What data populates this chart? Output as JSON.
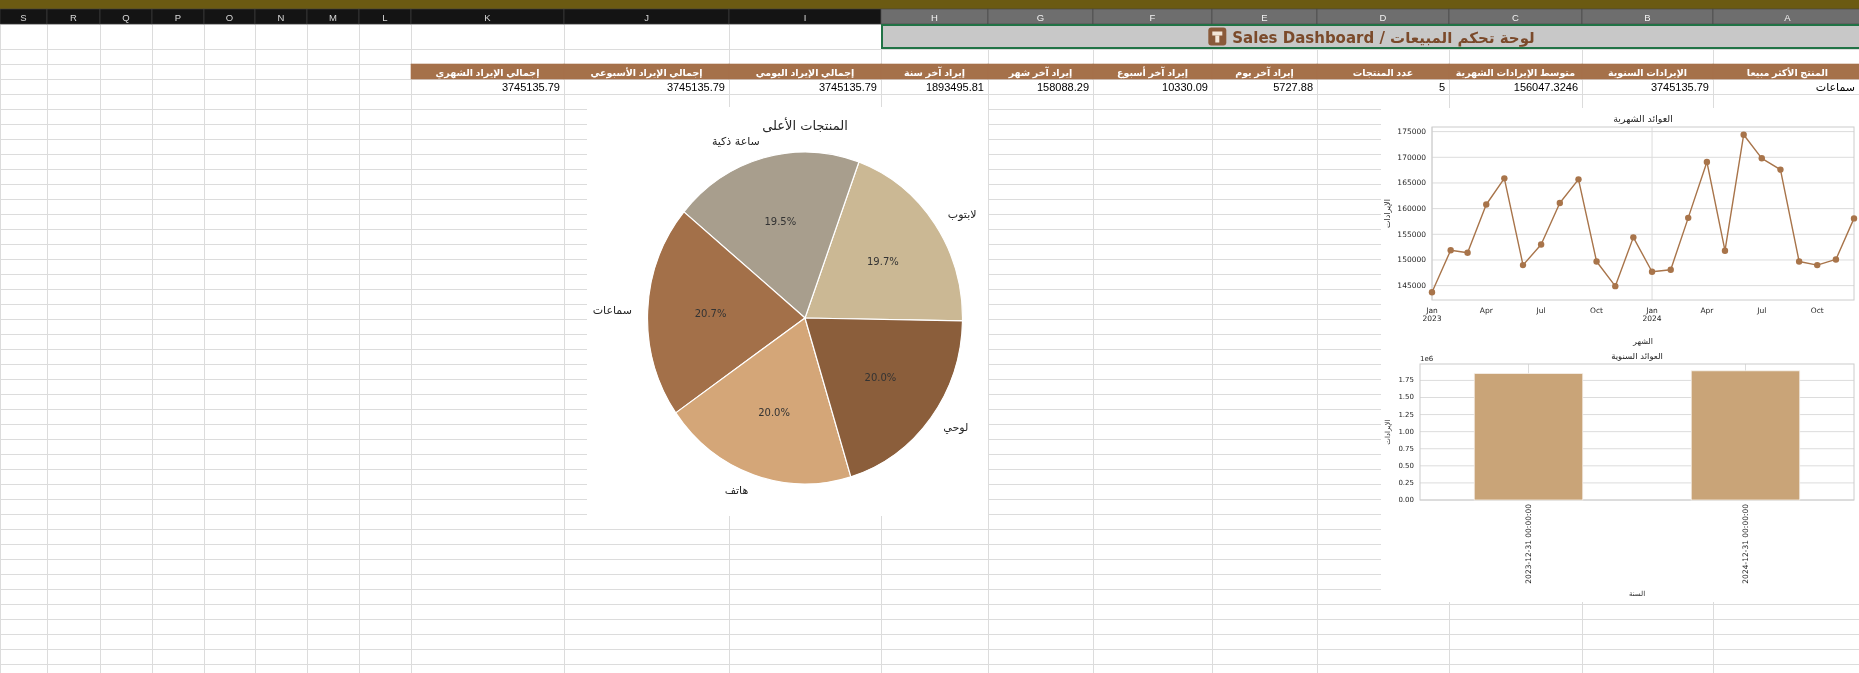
{
  "chart_data": [
    {
      "type": "other",
      "title": "لوحة تحكم المبيعات / Sales Dashboard",
      "categories": [
        "S",
        "R",
        "Q",
        "P",
        "O",
        "N",
        "M",
        "L",
        "K",
        "J",
        "I",
        "H",
        "G",
        "F",
        "E",
        "D",
        "C",
        "B",
        "A"
      ]
    },
    {
      "type": "other",
      "categories": [
        "إجمالي الإيراد الشهري",
        "إجمالي الإيراد الأسبوعي",
        "إجمالي الإيراد اليومي",
        "إيراد آخر سنة",
        "إيراد آخر شهر",
        "إيراد آخر أسبوع",
        "إيراد آخر يوم",
        "عدد المنتجات",
        "متوسط الإيرادات الشهرية",
        "الإيرادات السنوية",
        "المنتج الأكثر مبيعا"
      ],
      "value_labels": [
        "3745135.79",
        "3745135.79",
        "3745135.79",
        "1893495.81",
        "158088.29",
        "10330.09",
        "5727.88",
        "5",
        "156047.3246",
        "3745135.79",
        "سماعات"
      ]
    },
    {
      "type": "line",
      "title": "العوائد الشهرية",
      "xlabel": "الشهر",
      "ylabel": "الإيرادات",
      "x": [
        "2023-01",
        "2023-02",
        "2023-03",
        "2023-04",
        "2023-05",
        "2023-06",
        "2023-07",
        "2023-08",
        "2023-09",
        "2023-10",
        "2023-11",
        "2023-12",
        "2024-01",
        "2024-02",
        "2024-03",
        "2024-04",
        "2024-05",
        "2024-06",
        "2024-07",
        "2024-08",
        "2024-09",
        "2024-10",
        "2024-11",
        "2024-12"
      ],
      "series": [
        {
          "color": "#a8744a",
          "values": [
            143700,
            151900,
            151400,
            160800,
            165900,
            149000,
            153000,
            161100,
            165700,
            149700,
            144900,
            154400,
            147700,
            148100,
            158200,
            169100,
            151800,
            174400,
            169800,
            167600,
            149700,
            149000,
            150100,
            158100
          ]
        }
      ],
      "xlim": [
        "2023-01",
        "2024-12"
      ],
      "ylim": [
        142200,
        175900
      ],
      "xticks": [
        {
          "value": "2023-01",
          "label": "Jan\n2023"
        },
        {
          "value": "2023-04",
          "label": "Apr"
        },
        {
          "value": "2023-07",
          "label": "Jul"
        },
        {
          "value": "2023-10",
          "label": "Oct"
        },
        {
          "value": "2024-01",
          "label": "Jan\n2024"
        },
        {
          "value": "2024-04",
          "label": "Apr"
        },
        {
          "value": "2024-07",
          "label": "Jul"
        },
        {
          "value": "2024-10",
          "label": "Oct"
        }
      ],
      "yticks": [
        145000,
        150000,
        155000,
        160000,
        165000,
        170000,
        175000
      ],
      "grid": true,
      "marker": "circle"
    },
    {
      "type": "bar",
      "title": "العوائد السنوية",
      "xlabel": "السنة",
      "ylabel": "الإيرادات",
      "categories": [
        "2023-12-31 00:00:00",
        "2024-12-31 00:00:00"
      ],
      "values": [
        1.85,
        1.89
      ],
      "color": "#c9a478",
      "ylim": [
        0,
        1.99
      ],
      "yticks": [
        {
          "value": 0,
          "label": "0.00"
        },
        0.25,
        {
          "value": 0.5,
          "label": "0.50"
        },
        0.75,
        {
          "value": 1,
          "label": "1.00"
        },
        1.25,
        {
          "value": 1.5,
          "label": "1.50"
        },
        1.75
      ],
      "annotations": [
        "1e6"
      ],
      "grid": true
    },
    {
      "type": "pie",
      "title": "المنتجات الأعلى",
      "categories": [
        "لابتوب",
        "ساعة ذكية",
        "سماعات",
        "هاتف",
        "لوحي"
      ],
      "values": [
        19.7,
        19.5,
        20.7,
        20.0,
        20.0
      ],
      "colors": [
        "#cbb894",
        "#a89e8d",
        "#a37049",
        "#d4a678",
        "#8b5e3b"
      ],
      "value_labels": [
        "19.7%",
        "19.5%",
        "20.7%",
        "20.0%",
        "20.0%"
      ]
    }
  ]
}
